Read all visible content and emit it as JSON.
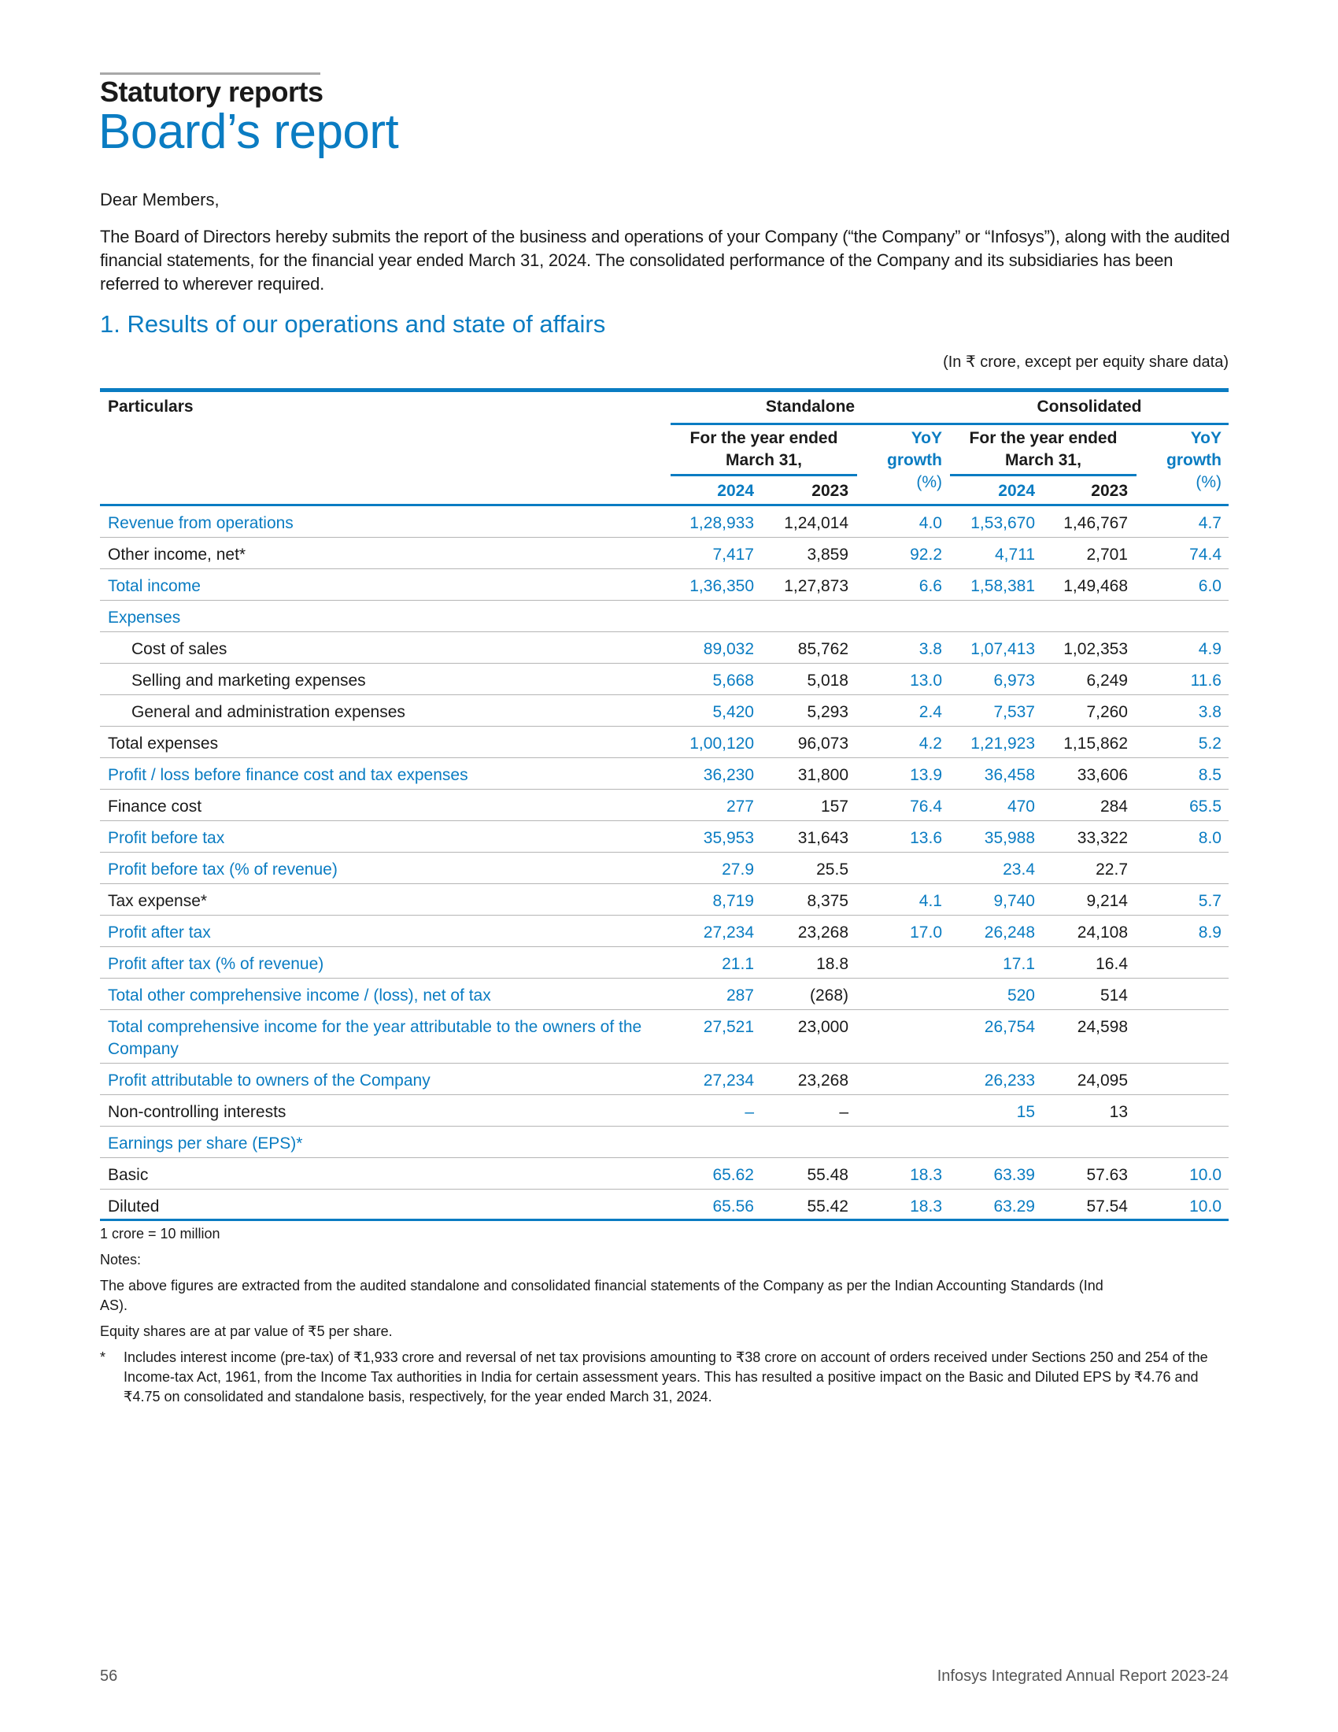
{
  "header": {
    "section": "Statutory reports",
    "title": "Board’s report"
  },
  "intro": {
    "salutation": "Dear Members,",
    "paragraph": "The Board of Directors hereby submits the report of the business and operations of your Company (“the Company” or “Infosys”), along with the audited financial statements, for the financial year ended March 31, 2024. The consolidated performance of the Company and its subsidiaries has been referred to wherever required."
  },
  "section1": {
    "heading": "1. Results of our operations and state of affairs",
    "unit_note": "(In ₹ crore, except per equity share data)"
  },
  "table": {
    "col_particulars": "Particulars",
    "standalone": "Standalone",
    "consolidated": "Consolidated",
    "year_ended": "For the year ended",
    "march": "March 31,",
    "yoy1": "YoY",
    "yoy2": "growth",
    "yoy3": "(%)",
    "y2024": "2024",
    "y2023": "2023",
    "rows": [
      {
        "label": "Revenue from operations",
        "blue": true,
        "v": [
          "1,28,933",
          "1,24,014",
          "4.0",
          "1,53,670",
          "1,46,767",
          "4.7"
        ]
      },
      {
        "label": "Other income, net*",
        "blue": false,
        "v": [
          "7,417",
          "3,859",
          "92.2",
          "4,711",
          "2,701",
          "74.4"
        ]
      },
      {
        "label": "Total income",
        "blue": true,
        "v": [
          "1,36,350",
          "1,27,873",
          "6.6",
          "1,58,381",
          "1,49,468",
          "6.0"
        ]
      },
      {
        "label": "Expenses",
        "blue": true,
        "v": [
          "",
          "",
          "",
          "",
          "",
          ""
        ]
      },
      {
        "label": "Cost of sales",
        "blue": false,
        "indent": true,
        "v": [
          "89,032",
          "85,762",
          "3.8",
          "1,07,413",
          "1,02,353",
          "4.9"
        ]
      },
      {
        "label": "Selling and marketing expenses",
        "blue": false,
        "indent": true,
        "v": [
          "5,668",
          "5,018",
          "13.0",
          "6,973",
          "6,249",
          "11.6"
        ]
      },
      {
        "label": "General and administration expenses",
        "blue": false,
        "indent": true,
        "v": [
          "5,420",
          "5,293",
          "2.4",
          "7,537",
          "7,260",
          "3.8"
        ]
      },
      {
        "label": "Total expenses",
        "blue": false,
        "v": [
          "1,00,120",
          "96,073",
          "4.2",
          "1,21,923",
          "1,15,862",
          "5.2"
        ]
      },
      {
        "label": "Profit / loss before finance cost and tax expenses",
        "blue": true,
        "v": [
          "36,230",
          "31,800",
          "13.9",
          "36,458",
          "33,606",
          "8.5"
        ]
      },
      {
        "label": "Finance cost",
        "blue": false,
        "v": [
          "277",
          "157",
          "76.4",
          "470",
          "284",
          "65.5"
        ]
      },
      {
        "label": "Profit before tax",
        "blue": true,
        "v": [
          "35,953",
          "31,643",
          "13.6",
          "35,988",
          "33,322",
          "8.0"
        ]
      },
      {
        "label": "Profit before tax (% of revenue)",
        "blue": true,
        "v": [
          "27.9",
          "25.5",
          "",
          "23.4",
          "22.7",
          ""
        ]
      },
      {
        "label": "Tax expense*",
        "blue": false,
        "v": [
          "8,719",
          "8,375",
          "4.1",
          "9,740",
          "9,214",
          "5.7"
        ]
      },
      {
        "label": "Profit after tax",
        "blue": true,
        "v": [
          "27,234",
          "23,268",
          "17.0",
          "26,248",
          "24,108",
          "8.9"
        ]
      },
      {
        "label": "Profit after tax (% of revenue)",
        "blue": true,
        "v": [
          "21.1",
          "18.8",
          "",
          "17.1",
          "16.4",
          ""
        ]
      },
      {
        "label": "Total other comprehensive income / (loss), net of tax",
        "blue": true,
        "v": [
          "287",
          "(268)",
          "",
          "520",
          "514",
          ""
        ]
      },
      {
        "label": "Total comprehensive income for the year attributable to the owners of the Company",
        "blue": true,
        "tall": true,
        "v": [
          "27,521",
          "23,000",
          "",
          "26,754",
          "24,598",
          ""
        ]
      },
      {
        "label": "Profit attributable to owners of the Company",
        "blue": true,
        "v": [
          "27,234",
          "23,268",
          "",
          "26,233",
          "24,095",
          ""
        ]
      },
      {
        "label": "Non-controlling interests",
        "blue": false,
        "v": [
          "–",
          "–",
          "",
          "15",
          "13",
          ""
        ]
      },
      {
        "label": "Earnings per share (EPS)*",
        "blue": true,
        "v": [
          "",
          "",
          "",
          "",
          "",
          ""
        ]
      },
      {
        "label": "Basic",
        "blue": false,
        "v": [
          "65.62",
          "55.48",
          "18.3",
          "63.39",
          "57.63",
          "10.0"
        ]
      },
      {
        "label": "Diluted",
        "blue": false,
        "v": [
          "65.56",
          "55.42",
          "18.3",
          "63.29",
          "57.54",
          "10.0"
        ]
      }
    ]
  },
  "footnotes": {
    "crore": "1 crore = 10 million",
    "notes": "Notes:",
    "n1": "The above figures are extracted from the audited standalone and consolidated financial statements of the Company as per the Indian Accounting Standards (Ind AS).",
    "n2": "Equity shares are at par value of ₹5 per share.",
    "star": "*",
    "n3": "Includes interest income (pre-tax) of ₹1,933 crore and reversal of net tax provisions amounting to ₹38 crore on account of orders received under Sections 250 and 254 of the Income-tax Act, 1961, from the Income Tax authorities in India for certain assessment years. This has resulted a positive impact on the Basic and Diluted EPS by ₹4.76 and ₹4.75 on consolidated and standalone basis, respectively, for the year ended March 31, 2024."
  },
  "page_footer": {
    "page_number": "56",
    "report_name": "Infosys Integrated Annual Report 2023-24"
  },
  "colors": {
    "accent": "#0a7cc2"
  }
}
